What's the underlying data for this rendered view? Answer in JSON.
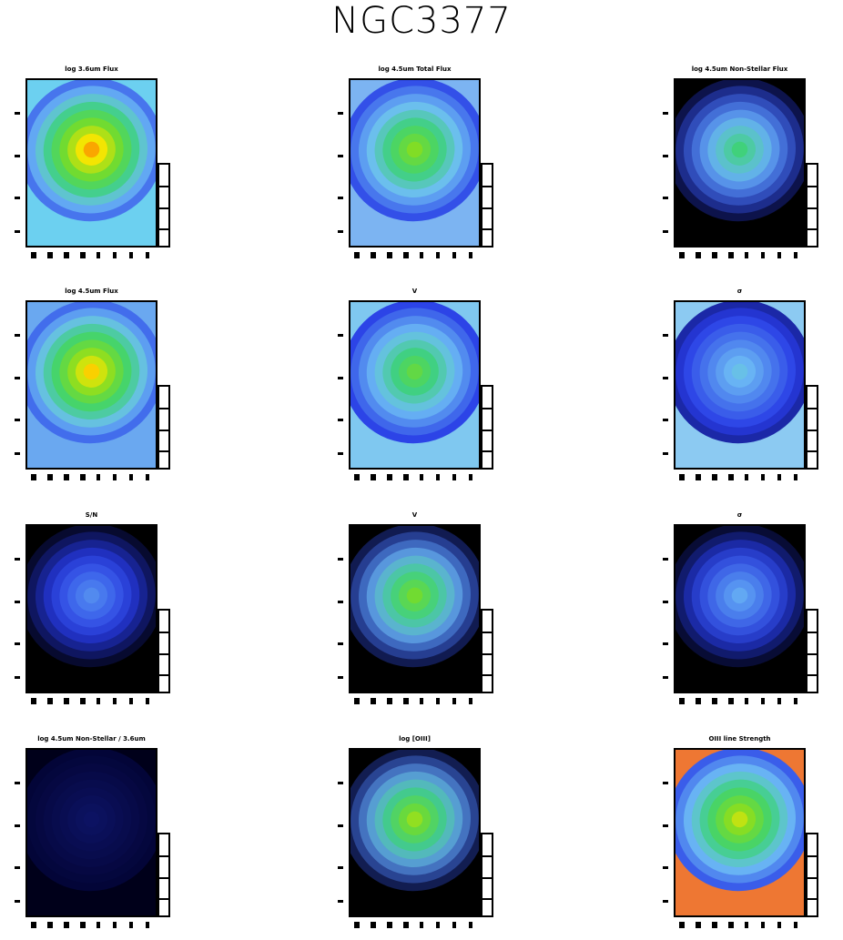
{
  "title": "NGC3377",
  "chart_data": [
    {
      "type": "heatmap",
      "title": "log 3.6um Flux",
      "colormap": "rainbow",
      "peak_level": 0.95,
      "background": "#6cd0f0"
    },
    {
      "type": "heatmap",
      "title": "log 4.5um Total Flux",
      "colormap": "rainbow",
      "peak_level": 0.72,
      "background": "#7cb4f2"
    },
    {
      "type": "heatmap",
      "title": "log 4.5um Non-Stellar Flux",
      "colormap": "rainbow",
      "peak_level": 0.55,
      "background": "#000000"
    },
    {
      "type": "heatmap",
      "title": "log 4.5um Flux",
      "colormap": "rainbow",
      "peak_level": 0.9,
      "background": "#6aa8f0"
    },
    {
      "type": "heatmap",
      "title": "V",
      "colormap": "rainbow",
      "peak_level": 0.65,
      "background": "#7fc8f0"
    },
    {
      "type": "heatmap",
      "title": "σ",
      "colormap": "rainbow",
      "peak_level": 0.4,
      "background": "#8ccaf2"
    },
    {
      "type": "heatmap",
      "title": "S/N",
      "colormap": "rainbow",
      "peak_level": 0.3,
      "background": "#000000"
    },
    {
      "type": "heatmap",
      "title": "V",
      "colormap": "rainbow",
      "peak_level": 0.7,
      "background": "#000000"
    },
    {
      "type": "heatmap",
      "title": "σ",
      "colormap": "rainbow",
      "peak_level": 0.35,
      "background": "#000000"
    },
    {
      "type": "heatmap",
      "title": "log 4.5um Non-Stellar / 3.6um",
      "colormap": "rainbow",
      "peak_level": 0.05,
      "background": "#00001a"
    },
    {
      "type": "heatmap",
      "title": "log [OIII]",
      "colormap": "rainbow",
      "peak_level": 0.75,
      "background": "#000000"
    },
    {
      "type": "heatmap",
      "title": "OIII line Strength",
      "colormap": "rainbow",
      "peak_level": 0.8,
      "background": "#ee7733"
    }
  ],
  "colors": {
    "frame": "#000000",
    "background": "#ffffff"
  }
}
